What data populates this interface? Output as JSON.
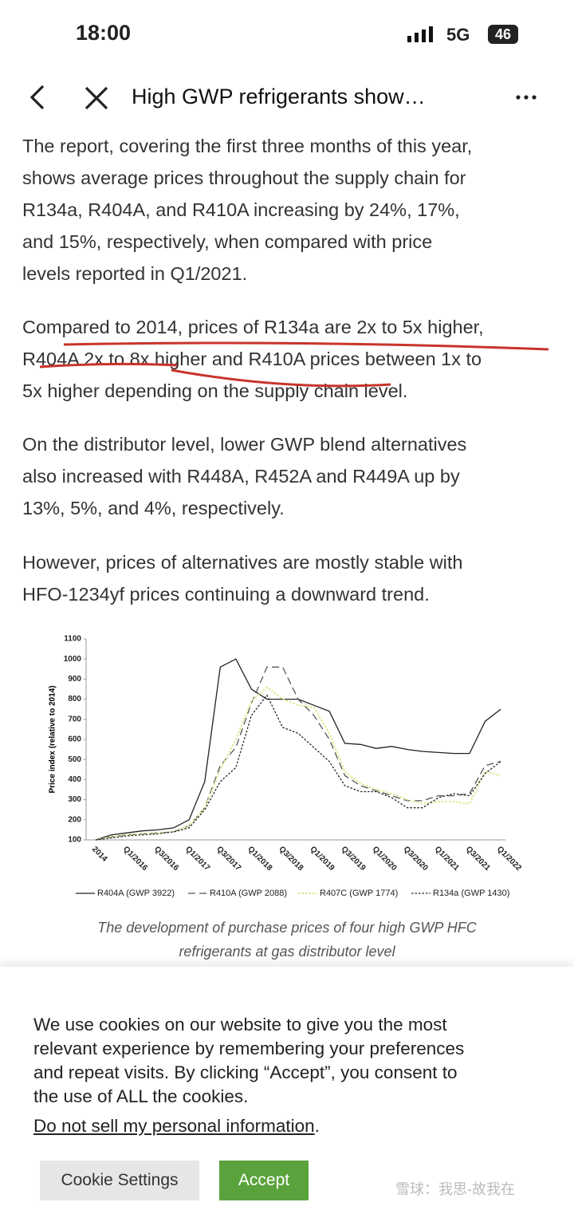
{
  "status_bar": {
    "time": "18:00",
    "network": "5G",
    "battery": "46"
  },
  "nav": {
    "title": "High GWP refrigerants show…"
  },
  "article": {
    "paragraphs": [
      [
        "The report, covering the first three months of this year,",
        "shows average prices throughout the supply chain for",
        "R134a, R404A, and R410A increasing by 24%, 17%,",
        "and 15%, respectively, when compared with price",
        "levels reported in Q1/2021."
      ],
      [
        "Compared to 2014, prices of R134a are 2x to 5x higher,",
        "R404A 2x to 8x higher and R410A prices between 1x to",
        "5x higher depending on the supply chain level."
      ],
      [
        "On the distributor level, lower GWP blend alternatives",
        "also increased with R448A, R452A and R449A up by",
        "13%, 5%, and 4%, respectively."
      ],
      [
        "However, prices of alternatives are mostly stable with",
        "HFO-1234yf prices continuing a downward trend."
      ]
    ],
    "figure": {
      "chart_data": {
        "type": "line",
        "y_label": "Price index (relative to 2014)",
        "categories": [
          "2014",
          null,
          "Q1/2016",
          null,
          "Q3/2016",
          null,
          "Q1/2017",
          null,
          "Q3/2017",
          null,
          "Q1/2018",
          null,
          "Q3/2018",
          null,
          "Q1/2019",
          null,
          "Q3/2019",
          null,
          "Q1/2020",
          null,
          "Q3/2020",
          null,
          "Q1/2021",
          null,
          "Q3/2021",
          null,
          "Q1/2022"
        ],
        "series": [
          {
            "name": "R404A (GWP 3922)",
            "color": "#222222",
            "style": "solid",
            "values": [
              100,
              125,
              135,
              145,
              150,
              160,
              200,
              390,
              960,
              1000,
              850,
              800,
              800,
              800,
              770,
              740,
              580,
              575,
              555,
              565,
              550,
              540,
              535,
              530,
              530,
              690,
              750
            ]
          },
          {
            "name": "R410A (GWP 2088)",
            "color": "#555555",
            "style": "dashed",
            "values": [
              100,
              115,
              125,
              130,
              135,
              140,
              170,
              260,
              470,
              560,
              780,
              960,
              960,
              800,
              720,
              600,
              420,
              370,
              345,
              320,
              295,
              295,
              320,
              320,
              330,
              470,
              490
            ]
          },
          {
            "name": "R407C (GWP 1774)",
            "color": "#e3e48c",
            "style": "dotted",
            "values": [
              100,
              115,
              125,
              130,
              135,
              140,
              170,
              260,
              450,
              600,
              790,
              860,
              800,
              770,
              760,
              630,
              440,
              380,
              350,
              330,
              300,
              280,
              290,
              290,
              280,
              440,
              420
            ]
          },
          {
            "name": "R134a (GWP 1430)",
            "color": "#222222",
            "style": "dotted",
            "values": [
              100,
              110,
              120,
              125,
              130,
              140,
              160,
              250,
              390,
              460,
              720,
              820,
              660,
              630,
              560,
              490,
              370,
              340,
              340,
              310,
              260,
              260,
              310,
              330,
              320,
              430,
              490
            ]
          }
        ],
        "ylim": [
          100,
          1100
        ],
        "yticks": [
          100,
          200,
          300,
          400,
          500,
          600,
          700,
          800,
          900,
          1000,
          1100
        ],
        "grid": false,
        "legend": "bottom"
      },
      "caption": [
        "The development of purchase prices of four high GWP HFC",
        "refrigerants at gas distributor level"
      ]
    }
  },
  "cookie_banner": {
    "text": [
      "We use cookies on our website to give you the most",
      "relevant experience by remembering your preferences",
      "and repeat visits. By clicking “Accept”, you consent to",
      "the use of ALL the cookies."
    ],
    "link": "Do not sell my personal information",
    "link_suffix": ".",
    "buttons": [
      "Cookie Settings",
      "Accept"
    ]
  },
  "watermark": "雪球：我思-故我在"
}
